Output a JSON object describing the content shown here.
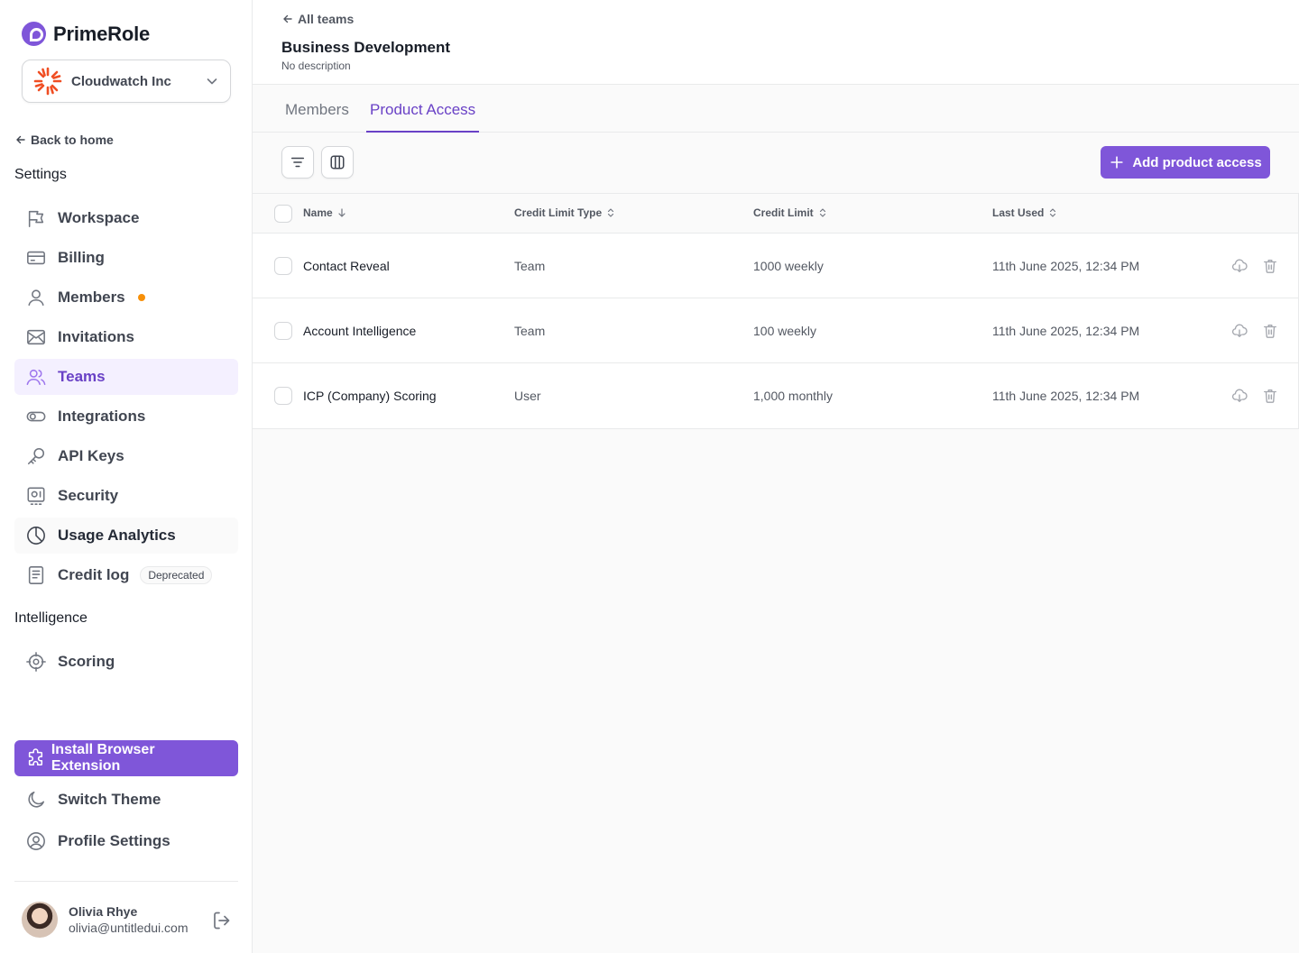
{
  "brand": {
    "name": "PrimeRole",
    "accent": "#7f56d9"
  },
  "org": {
    "name": "Cloudwatch Inc"
  },
  "sidebar": {
    "back_label": "Back to home",
    "settings_title": "Settings",
    "items": [
      {
        "label": "Workspace",
        "icon": "flag-icon"
      },
      {
        "label": "Billing",
        "icon": "credit-card-icon"
      },
      {
        "label": "Members",
        "icon": "user-icon"
      },
      {
        "label": "Invitations",
        "icon": "mail-icon"
      },
      {
        "label": "Teams",
        "icon": "users-icon"
      },
      {
        "label": "Integrations",
        "icon": "toggle-icon"
      },
      {
        "label": "API Keys",
        "icon": "key-icon"
      },
      {
        "label": "Security",
        "icon": "passcode-icon"
      },
      {
        "label": "Usage Analytics",
        "icon": "pie-chart-icon"
      },
      {
        "label": "Credit log",
        "icon": "file-icon",
        "badge": "Deprecated"
      }
    ],
    "intelligence_title": "Intelligence",
    "intelligence_items": [
      {
        "label": "Scoring",
        "icon": "target-icon"
      }
    ],
    "install_label": "Install Browser Extension",
    "theme_label": "Switch Theme",
    "profile_label": "Profile Settings"
  },
  "user": {
    "name": "Olivia Rhye",
    "email": "olivia@untitledui.com"
  },
  "header": {
    "back_label": "All teams",
    "title": "Business Development",
    "description": "No description"
  },
  "tabs": [
    {
      "label": "Members"
    },
    {
      "label": "Product Access"
    }
  ],
  "toolbar": {
    "add_label": "Add product access"
  },
  "table": {
    "columns": [
      "Name",
      "Credit Limit Type",
      "Credit Limit",
      "Last Used"
    ],
    "rows": [
      {
        "name": "Contact Reveal",
        "type": "Team",
        "limit": "1000 weekly",
        "last_used": "11th June 2025, 12:34 PM"
      },
      {
        "name": "Account Intelligence",
        "type": "Team",
        "limit": "100 weekly",
        "last_used": "11th June 2025, 12:34 PM"
      },
      {
        "name": "ICP (Company) Scoring",
        "type": "User",
        "limit": "1,000 monthly",
        "last_used": "11th June 2025, 12:34 PM"
      }
    ]
  }
}
